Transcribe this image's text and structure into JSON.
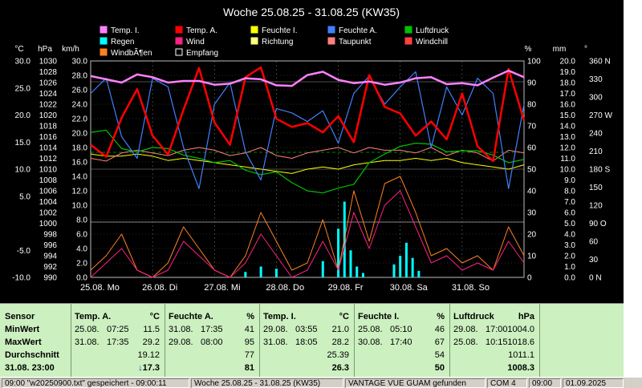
{
  "chart_data": {
    "type": "line",
    "title": "Woche 25.08.25 - 31.08.25 (KW35)",
    "legend": [
      {
        "name": "Temp. I.",
        "color": "#ff80ff"
      },
      {
        "name": "Temp. A.",
        "color": "#ff0000"
      },
      {
        "name": "Feuchte I.",
        "color": "#ffff00"
      },
      {
        "name": "Feuchte A.",
        "color": "#4080ff"
      },
      {
        "name": "Luftdruck",
        "color": "#00c000"
      },
      {
        "name": "Regen",
        "color": "#00ffff"
      },
      {
        "name": "Wind",
        "color": "#ff2080"
      },
      {
        "name": "Richtung",
        "color": "#ffff80"
      },
      {
        "name": "Taupunkt",
        "color": "#ff8080"
      },
      {
        "name": "Windchill",
        "color": "#ff4040"
      },
      {
        "name": "WindbÃ¶en",
        "color": "#ff8020"
      },
      {
        "name": "Empfang",
        "color": "#ffffff"
      }
    ],
    "axes": {
      "temp": {
        "unit": "°C",
        "ticks": [
          "30.0",
          "25.0",
          "20.0",
          "15.0",
          "10.0",
          "5.0",
          "",
          "-5.0",
          "-10.0"
        ],
        "ylim": [
          -10,
          30
        ]
      },
      "press": {
        "unit": "hPa",
        "ticks": [
          "1030",
          "1028",
          "1026",
          "1024",
          "1022",
          "1020",
          "1018",
          "1016",
          "1014",
          "1012",
          "1010",
          "1008",
          "1006",
          "1004",
          "1002",
          "1000",
          "998",
          "996",
          "994",
          "992",
          "990"
        ],
        "ylim": [
          990,
          1030
        ]
      },
      "wind": {
        "unit": "km/h",
        "ticks": [
          "30.0",
          "28.0",
          "26.0",
          "24.0",
          "22.0",
          "20.0",
          "18.0",
          "16.0",
          "14.0",
          "12.0",
          "10.0",
          "8.0",
          "6.0",
          "4.0",
          "2.0",
          "0.0"
        ],
        "ylim": [
          0,
          30
        ]
      },
      "hum": {
        "unit": "%",
        "ticks": [
          "100",
          "90",
          "80",
          "70",
          "60",
          "50",
          "40",
          "30",
          "20",
          "10",
          "0"
        ],
        "ylim": [
          0,
          100
        ]
      },
      "rain": {
        "unit": "mm",
        "ticks": [
          "20.0",
          "19.0",
          "18.0",
          "17.0",
          "16.0",
          "15.0",
          "14.0",
          "13.0",
          "12.0",
          "11.0",
          "10.0",
          "9.0",
          "8.0",
          "7.0",
          "6.0",
          "5.0",
          "4.0",
          "3.0",
          "2.0",
          "1.0",
          "0.0"
        ],
        "ylim": [
          0,
          20
        ]
      },
      "dir": {
        "unit": "°",
        "ticks": [
          "360 N",
          "330",
          "300",
          "270 W",
          "240",
          "210",
          "180 S",
          "150",
          "120",
          "90  O",
          "60",
          "30",
          "0   N"
        ],
        "ylim": [
          0,
          360
        ]
      }
    },
    "x_ticks": [
      "25.08.  Mo",
      "26.08.  Di",
      "27.08.  Mi",
      "28.08.  Do",
      "29.08.  Fr",
      "30.08.  Sa",
      "31.08.  So"
    ],
    "series": [
      {
        "name": "Temp. I.",
        "unit": "°C",
        "values": [
          27.2,
          26.6,
          26.0,
          27.5,
          27.0,
          26.0,
          26.3,
          26.3,
          25.6,
          25.8,
          26.8,
          26.6,
          25.5,
          25.4,
          27.4,
          28.0,
          26.5,
          25.9,
          26.2,
          25.6,
          26.0,
          26.8,
          27.0,
          25.7,
          25.9,
          25.5,
          26.9,
          28.2,
          27.0
        ]
      },
      {
        "name": "Temp. A.",
        "unit": "°C",
        "values": [
          14.5,
          12.3,
          19.5,
          24.8,
          16.2,
          12.7,
          21.0,
          28.7,
          18.6,
          14.5,
          27.0,
          28.8,
          19.3,
          17.8,
          18.5,
          16.8,
          19.8,
          15.0,
          27.4,
          21.5,
          20.3,
          16.2,
          18.8,
          15.5,
          24.0,
          14.2,
          11.5,
          28.5,
          19.0
        ]
      },
      {
        "name": "Feuchte A.",
        "unit": "%",
        "values": [
          85,
          92,
          65,
          55,
          92,
          88,
          60,
          41,
          80,
          90,
          58,
          45,
          78,
          76,
          72,
          77,
          62,
          85,
          93,
          80,
          88,
          95,
          60,
          88,
          75,
          92,
          85,
          41,
          80
        ]
      },
      {
        "name": "Luftdruck",
        "unit": "hPa",
        "values": [
          1016.8,
          1017.2,
          1013.8,
          1013.2,
          1014.0,
          1013.8,
          1012.6,
          1012.0,
          1011.2,
          1011.6,
          1009.8,
          1009.0,
          1009.5,
          1007.5,
          1006.0,
          1005.6,
          1006.5,
          1007.2,
          1011.2,
          1012.8,
          1014.2,
          1014.8,
          1014.6,
          1013.2,
          1013.4,
          1013.4,
          1012.6,
          1011.2,
          1011.8
        ]
      },
      {
        "name": "Feuchte I.",
        "unit": "%",
        "values": [
          57,
          56,
          56,
          57,
          56,
          54,
          55,
          54,
          53,
          52,
          51,
          50,
          49,
          48,
          50,
          51,
          50,
          52,
          53,
          54,
          54,
          55,
          54,
          55,
          53,
          52,
          51,
          50,
          52
        ]
      },
      {
        "name": "Taupunkt",
        "unit": "°C",
        "values": [
          12.0,
          11.5,
          13.0,
          13.5,
          13.0,
          12.5,
          13.5,
          14.0,
          13.5,
          12.5,
          13.0,
          14.0,
          12.5,
          12.0,
          13.0,
          13.5,
          14.0,
          13.0,
          14.0,
          13.5,
          13.5,
          13.0,
          14.0,
          12.5,
          13.5,
          13.0,
          11.5,
          13.5,
          13.0
        ]
      },
      {
        "name": "WindbÃ¶en",
        "unit": "km/h",
        "values": [
          1,
          3,
          6,
          1,
          0,
          2,
          7,
          4,
          1,
          0,
          3,
          9,
          5,
          1,
          2,
          8,
          1,
          12,
          5,
          13,
          14,
          9,
          3,
          4,
          2,
          3,
          1,
          7,
          3
        ]
      },
      {
        "name": "Wind",
        "unit": "km/h",
        "values": [
          0,
          2,
          4,
          1,
          0,
          1,
          5,
          3,
          1,
          0,
          2,
          6,
          3,
          0,
          1,
          5,
          1,
          9,
          4,
          10,
          12,
          7,
          2,
          3,
          1,
          2,
          1,
          5,
          2
        ]
      }
    ],
    "rain_bars": [
      {
        "i": 10,
        "v": 0.5
      },
      {
        "i": 11,
        "v": 1.0
      },
      {
        "i": 12,
        "v": 0.8
      },
      {
        "i": 15,
        "v": 1.5
      },
      {
        "i": 16,
        "v": 4.5
      },
      {
        "i": 16.4,
        "v": 7.0
      },
      {
        "i": 16.8,
        "v": 2.5
      },
      {
        "i": 17.2,
        "v": 1.0
      },
      {
        "i": 17.6,
        "v": 0.4
      },
      {
        "i": 19.6,
        "v": 1.2
      },
      {
        "i": 20.0,
        "v": 2.0
      },
      {
        "i": 20.4,
        "v": 3.2
      },
      {
        "i": 20.8,
        "v": 1.8
      },
      {
        "i": 21.2,
        "v": 0.6
      }
    ]
  },
  "stats": {
    "sensor_col": {
      "header": "Sensor",
      "min_label": "MinWert",
      "max_label": "MaxWert",
      "avg_label": "Durchschnitt",
      "now_label": "31.08. 23:00"
    },
    "columns": [
      {
        "name": "Temp. A.",
        "unit": "°C",
        "min_date": "25.08.",
        "min_time": "07:25",
        "min_val": "11.5",
        "max_date": "31.08.",
        "max_time": "17:35",
        "max_val": "29.2",
        "avg": "19.12",
        "now": "17.3",
        "now_arrow": "↓"
      },
      {
        "name": "Feuchte A.",
        "unit": "%",
        "min_date": "31.08.",
        "min_time": "17:35",
        "min_val": "41",
        "max_date": "29.08.",
        "max_time": "08:00",
        "max_val": "95",
        "avg": "77",
        "now": "81",
        "now_arrow": ""
      },
      {
        "name": "Temp. I.",
        "unit": "°C",
        "min_date": "29.08.",
        "min_time": "03:55",
        "min_val": "21.0",
        "max_date": "31.08.",
        "max_time": "18:05",
        "max_val": "28.2",
        "avg": "25.39",
        "now": "26.3",
        "now_arrow": ""
      },
      {
        "name": "Feuchte I.",
        "unit": "%",
        "min_date": "25.08.",
        "min_time": "05:10",
        "min_val": "46",
        "max_date": "30.08.",
        "max_time": "17:40",
        "max_val": "67",
        "avg": "54",
        "now": "50",
        "now_arrow": ""
      },
      {
        "name": "Luftdruck",
        "unit": "hPa",
        "min_date": "29.08.",
        "min_time": "17:00",
        "min_val": "1004.0",
        "max_date": "25.08.",
        "max_time": "10:15",
        "max_val": "1018.6",
        "avg": "1011.1",
        "now": "1008.3",
        "now_arrow": ""
      }
    ]
  },
  "statusbar": {
    "file": "09:00 \"w20250900.txt\" gespeichert - 09:00:11",
    "week": "Woche 25.08.25 - 31.08.25 (KW35)",
    "device": "VANTAGE VUE GUAM gefunden",
    "port": "COM 4",
    "time": "09:00",
    "date": "01.09.2025"
  }
}
